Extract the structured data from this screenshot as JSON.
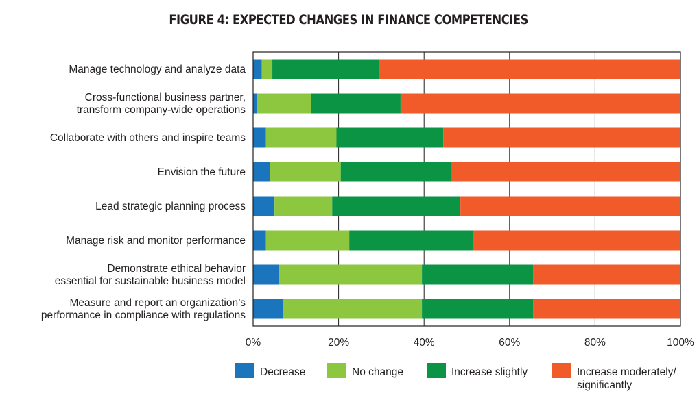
{
  "chart_data": {
    "type": "bar",
    "orientation": "horizontal",
    "stacked": true,
    "title": "FIGURE 4: EXPECTED CHANGES IN FINANCE COMPETENCIES",
    "categories": [
      [
        "Manage technology and analyze data"
      ],
      [
        "Cross-functional business partner,",
        "transform company-wide operations"
      ],
      [
        "Collaborate with others and inspire teams"
      ],
      [
        "Envision the future"
      ],
      [
        "Lead strategic planning process"
      ],
      [
        "Manage risk and monitor performance"
      ],
      [
        "Demonstrate ethical behavior",
        "essential for sustainable business model"
      ],
      [
        "Measure and report an organization’s",
        "performance in compliance with regulations"
      ]
    ],
    "series": [
      {
        "name": "Decrease",
        "color": "#1a75bc",
        "values": [
          2,
          1,
          3,
          4,
          5,
          3,
          6,
          7
        ]
      },
      {
        "name": "No change",
        "color": "#8dc63f",
        "values": [
          2.5,
          12.5,
          16.5,
          16.5,
          13.5,
          19.5,
          33.5,
          32.5
        ]
      },
      {
        "name": "Increase slightly",
        "color": "#0b9444",
        "values": [
          25,
          21,
          25,
          26,
          30,
          29,
          26,
          26
        ]
      },
      {
        "name": "Increase moderately/ significantly",
        "legend_lines": [
          "Increase moderately/",
          "significantly"
        ],
        "color": "#f15a29",
        "values": [
          70.5,
          65.5,
          55.5,
          53.5,
          51.5,
          48.5,
          34.5,
          34.5
        ]
      }
    ],
    "xlim": [
      0,
      100
    ],
    "x_ticks": [
      "0%",
      "20%",
      "40%",
      "60%",
      "80%",
      "100%"
    ],
    "grid": true,
    "legend": "bottom"
  }
}
